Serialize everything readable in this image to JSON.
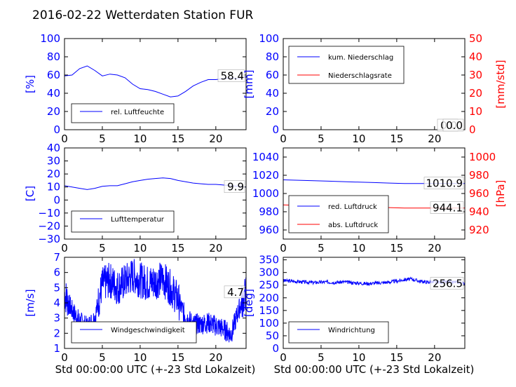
{
  "page_title": "2016-02-22 Wetterdaten Station FUR",
  "chart_data": [
    {
      "type": "line",
      "panel": "humidity",
      "x": [
        0,
        1,
        2,
        3,
        4,
        5,
        6,
        7,
        8,
        9,
        10,
        11,
        12,
        13,
        14,
        15,
        16,
        17,
        18,
        19,
        20,
        21,
        22,
        23,
        24
      ],
      "xlim": [
        0,
        24
      ],
      "xticks": [
        0,
        5,
        10,
        15,
        20
      ],
      "xlabel": "",
      "ylabel": "[%]",
      "ylim": [
        0,
        100
      ],
      "yticks": [
        0,
        20,
        40,
        60,
        80,
        100
      ],
      "series": [
        {
          "name": "rel. Luftfeuchte",
          "color": "#0000ff",
          "values": [
            59,
            60,
            67,
            70,
            65,
            59,
            61,
            60,
            57,
            50,
            45,
            44,
            42,
            39,
            36,
            37,
            42,
            48,
            52,
            55,
            55,
            56,
            57,
            56,
            58
          ]
        }
      ],
      "last_value_label": "58.4",
      "legend_position": "lower-left"
    },
    {
      "type": "line",
      "panel": "precipitation",
      "x": [
        0,
        24
      ],
      "xlim": [
        0,
        24
      ],
      "xticks": [
        0,
        5,
        10,
        15,
        20
      ],
      "xlabel": "",
      "ylabel": "[mm]",
      "ylim": [
        0,
        100
      ],
      "yticks": [
        0,
        20,
        40,
        60,
        80,
        100
      ],
      "y2label": "[mm/std]",
      "y2lim": [
        0,
        50
      ],
      "y2ticks": [
        0,
        10,
        20,
        30,
        40,
        50
      ],
      "series": [
        {
          "name": "kum. Niederschlag",
          "color": "#0000ff",
          "axis": "left",
          "values": [
            0,
            0
          ]
        },
        {
          "name": "Niederschlagsrate",
          "color": "#ff0000",
          "axis": "right",
          "values": [
            0,
            0
          ]
        }
      ],
      "last_value_labels": [
        "0.0",
        "0.0"
      ],
      "legend_position": "upper-left"
    },
    {
      "type": "line",
      "panel": "temperature",
      "x": [
        0,
        1,
        2,
        3,
        4,
        5,
        6,
        7,
        8,
        9,
        10,
        11,
        12,
        13,
        14,
        15,
        16,
        17,
        18,
        19,
        20,
        21,
        22,
        23,
        24
      ],
      "xlim": [
        0,
        24
      ],
      "xticks": [
        0,
        5,
        10,
        15,
        20
      ],
      "xlabel": "",
      "ylabel": "[C]",
      "ylim": [
        -30,
        40
      ],
      "yticks": [
        -30,
        -20,
        -10,
        0,
        10,
        20,
        30,
        40
      ],
      "series": [
        {
          "name": "Lufttemperatur",
          "color": "#0000ff",
          "values": [
            11,
            10,
            9,
            8,
            9,
            10.5,
            11,
            11,
            12.5,
            14,
            15,
            16,
            16.5,
            17,
            16.5,
            15,
            14,
            13,
            12.5,
            12,
            12,
            11.5,
            11,
            10.5,
            10
          ]
        }
      ],
      "last_value_label": "9.9",
      "legend_position": "lower-left"
    },
    {
      "type": "line",
      "panel": "pressure",
      "x": [
        0,
        2,
        4,
        6,
        8,
        10,
        12,
        14,
        16,
        18,
        20,
        22,
        24
      ],
      "xlim": [
        0,
        24
      ],
      "xticks": [
        0,
        5,
        10,
        15,
        20
      ],
      "xlabel": "",
      "ylim": [
        950,
        1050
      ],
      "yticks": [
        960,
        980,
        1000,
        1020,
        1040
      ],
      "y2label": "[hPa]",
      "y2lim": [
        910,
        1010
      ],
      "y2ticks": [
        920,
        940,
        960,
        980,
        1000
      ],
      "series": [
        {
          "name": "red. Luftdruck",
          "color": "#0000ff",
          "axis": "left",
          "values": [
            1015,
            1014.5,
            1014,
            1013.5,
            1013,
            1012.5,
            1012,
            1011.5,
            1011,
            1011,
            1011,
            1011,
            1011
          ]
        },
        {
          "name": "abs. Luftdruck",
          "color": "#ff0000",
          "axis": "right",
          "values": [
            947.5,
            947,
            946.5,
            946,
            945.5,
            945,
            945,
            944.5,
            944,
            944,
            944,
            944,
            944.1
          ]
        }
      ],
      "last_value_labels": [
        "1010.9",
        "944.1"
      ],
      "legend_position": "lower-left"
    },
    {
      "type": "line",
      "panel": "wind_speed",
      "x": [
        0,
        1,
        2,
        3,
        4,
        5,
        6,
        7,
        8,
        9,
        10,
        11,
        12,
        13,
        14,
        15,
        16,
        17,
        18,
        19,
        20,
        21,
        22,
        23,
        24
      ],
      "xlim": [
        0,
        24
      ],
      "xticks": [
        0,
        5,
        10,
        15,
        20
      ],
      "xlabel": "Std 00:00:00 UTC (+-23 Std Lokalzeit)",
      "ylabel": "[m/s]",
      "ylim": [
        1,
        7
      ],
      "yticks": [
        1,
        2,
        3,
        4,
        5,
        6,
        7
      ],
      "series": [
        {
          "name": "Windgeschwindigkeit",
          "color": "#0000ff",
          "values": [
            4.6,
            3.5,
            2.8,
            2.4,
            3.0,
            5.2,
            5.5,
            5.0,
            5.4,
            5.8,
            5.5,
            5.3,
            5.4,
            5.6,
            5.0,
            4.2,
            3.1,
            2.6,
            2.6,
            2.7,
            2.5,
            2.3,
            1.9,
            3.5,
            4.7
          ]
        }
      ],
      "last_value_label": "4.7",
      "legend_position": "lower-center"
    },
    {
      "type": "line",
      "panel": "wind_direction",
      "x": [
        0,
        1,
        2,
        3,
        4,
        5,
        6,
        7,
        8,
        9,
        10,
        11,
        12,
        13,
        14,
        15,
        16,
        17,
        18,
        19,
        20,
        21,
        22,
        23,
        24
      ],
      "xlim": [
        0,
        24
      ],
      "xticks": [
        0,
        5,
        10,
        15,
        20
      ],
      "xlabel": "Std 00:00:00 UTC (+-23 Std Lokalzeit)",
      "ylabel": "[deg]",
      "ylim": [
        0,
        360
      ],
      "yticks": [
        0,
        50,
        100,
        150,
        200,
        250,
        300,
        350
      ],
      "series": [
        {
          "name": "Windrichtung",
          "color": "#0000ff",
          "values": [
            268,
            266,
            264,
            262,
            260,
            262,
            262,
            261,
            263,
            260,
            258,
            256,
            258,
            260,
            262,
            266,
            272,
            274,
            266,
            262,
            262,
            262,
            262,
            262,
            256
          ]
        }
      ],
      "last_value_label": "256.5",
      "legend_position": "lower-left"
    }
  ]
}
